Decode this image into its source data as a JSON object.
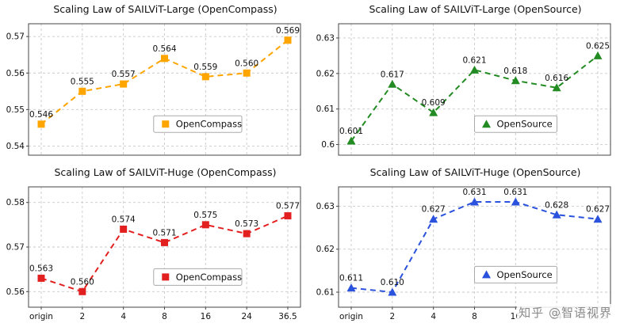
{
  "watermark": "知乎 @智语视界",
  "chart_data": [
    {
      "type": "line",
      "title": "Scaling Law of SAILViT-Large (OpenCompass)",
      "categories": [
        "origin",
        "2",
        "4",
        "8",
        "16",
        "24",
        "36.5"
      ],
      "values": [
        0.546,
        0.555,
        0.557,
        0.564,
        0.559,
        0.56,
        0.569
      ],
      "point_labels": [
        "0.546",
        "0.555",
        "0.557",
        "0.564",
        "0.559",
        "0.560",
        "0.569"
      ],
      "yticks": [
        0.54,
        0.55,
        0.56,
        0.57
      ],
      "ytick_labels": [
        "0.54",
        "0.55",
        "0.56",
        "0.57"
      ],
      "ylim": [
        0.5375,
        0.5735
      ],
      "color": "#ffa500",
      "marker": "square",
      "legend": "OpenCompass",
      "legend_position": "center-right",
      "grid": true,
      "show_x_labels": false,
      "legend_fx": 0.46,
      "legend_fy": 0.7
    },
    {
      "type": "line",
      "title": "Scaling Law of SAILViT-Large (OpenSource)",
      "categories": [
        "origin",
        "2",
        "4",
        "8",
        "16",
        "24",
        "36.5"
      ],
      "values": [
        0.601,
        0.617,
        0.609,
        0.621,
        0.618,
        0.616,
        0.625
      ],
      "point_labels": [
        "0.601",
        "0.617",
        "0.609",
        "0.621",
        "0.618",
        "0.616",
        "0.625"
      ],
      "yticks": [
        0.6,
        0.61,
        0.62,
        0.63
      ],
      "ytick_labels": [
        "0.6",
        "0.61",
        "0.62",
        "0.63"
      ],
      "ylim": [
        0.597,
        0.634
      ],
      "color": "#228b22",
      "marker": "triangle",
      "legend": "OpenSource",
      "legend_position": "center-right",
      "grid": true,
      "show_x_labels": false,
      "legend_fx": 0.5,
      "legend_fy": 0.7
    },
    {
      "type": "line",
      "title": "Scaling Law of SAILViT-Huge (OpenCompass)",
      "categories": [
        "origin",
        "2",
        "4",
        "8",
        "16",
        "24",
        "36.5"
      ],
      "values": [
        0.563,
        0.56,
        0.574,
        0.571,
        0.575,
        0.573,
        0.577
      ],
      "point_labels": [
        "0.563",
        "0.560",
        "0.574",
        "0.571",
        "0.575",
        "0.573",
        "0.577"
      ],
      "yticks": [
        0.56,
        0.57,
        0.58
      ],
      "ytick_labels": [
        "0.56",
        "0.57",
        "0.58"
      ],
      "ylim": [
        0.5565,
        0.5835
      ],
      "color": "#e32020",
      "marker": "square",
      "legend": "OpenCompass",
      "legend_position": "center-right",
      "grid": true,
      "show_x_labels": true,
      "legend_fx": 0.46,
      "legend_fy": 0.68
    },
    {
      "type": "line",
      "title": "Scaling Law of SAILViT-Huge (OpenSource)",
      "categories": [
        "origin",
        "2",
        "4",
        "8",
        "16",
        "24",
        "36.5"
      ],
      "values": [
        0.611,
        0.61,
        0.627,
        0.631,
        0.631,
        0.628,
        0.627
      ],
      "point_labels": [
        "0.611",
        "0.610",
        "0.627",
        "0.631",
        "0.631",
        "0.628",
        "0.627"
      ],
      "yticks": [
        0.61,
        0.62,
        0.63
      ],
      "ytick_labels": [
        "0.61",
        "0.62",
        "0.63"
      ],
      "ylim": [
        0.6065,
        0.6345
      ],
      "color": "#2a52dd",
      "marker": "triangle",
      "legend": "OpenSource",
      "legend_position": "center-right",
      "grid": true,
      "show_x_labels": true,
      "legend_fx": 0.5,
      "legend_fy": 0.66
    }
  ]
}
